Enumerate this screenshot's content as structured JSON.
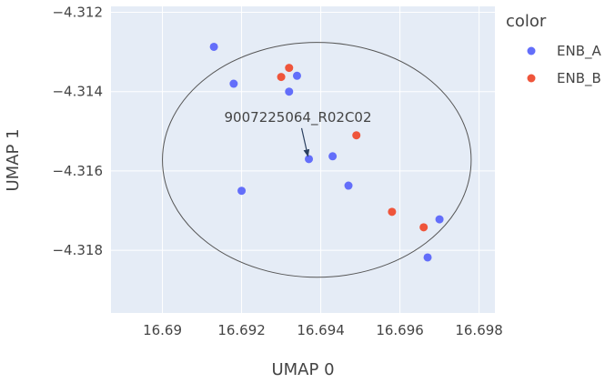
{
  "chart_data": {
    "type": "scatter",
    "xlabel": "UMAP 0",
    "ylabel": "UMAP 1",
    "xlim": [
      16.6887,
      16.6984
    ],
    "ylim": [
      -4.31958,
      -4.31185
    ],
    "x_ticks": [
      16.69,
      16.692,
      16.694,
      16.696,
      16.698
    ],
    "x_tick_labels": [
      "16.69",
      "16.692",
      "16.694",
      "16.696",
      "16.698"
    ],
    "y_ticks": [
      -4.312,
      -4.314,
      -4.316,
      -4.318
    ],
    "y_tick_labels": [
      "−4.312",
      "−4.314",
      "−4.316",
      "−4.318"
    ],
    "grid": true,
    "legend": {
      "title": "color",
      "placement": "right"
    },
    "series": [
      {
        "name": "ENB_A",
        "color": "#636efa",
        "points": [
          [
            16.6913,
            -4.31287
          ],
          [
            16.6918,
            -4.3138
          ],
          [
            16.6934,
            -4.3136
          ],
          [
            16.6932,
            -4.314
          ],
          [
            16.6937,
            -4.3157
          ],
          [
            16.6943,
            -4.31563
          ],
          [
            16.6947,
            -4.31637
          ],
          [
            16.692,
            -4.3165
          ],
          [
            16.697,
            -4.31722
          ],
          [
            16.6967,
            -4.31818
          ]
        ]
      },
      {
        "name": "ENB_B",
        "color": "#ef553b",
        "points": [
          [
            16.6932,
            -4.3134
          ],
          [
            16.693,
            -4.31363
          ],
          [
            16.6949,
            -4.3151
          ],
          [
            16.6958,
            -4.31703
          ],
          [
            16.6966,
            -4.31742
          ]
        ]
      }
    ],
    "annotations": [
      {
        "text": "9007225064_R02C02",
        "point": [
          16.6937,
          -4.3157
        ],
        "arrow": true
      }
    ],
    "circle": {
      "center": [
        16.6939,
        -4.31572
      ],
      "rx": 0.0039,
      "ry": 0.00296,
      "color": "#555555"
    }
  }
}
